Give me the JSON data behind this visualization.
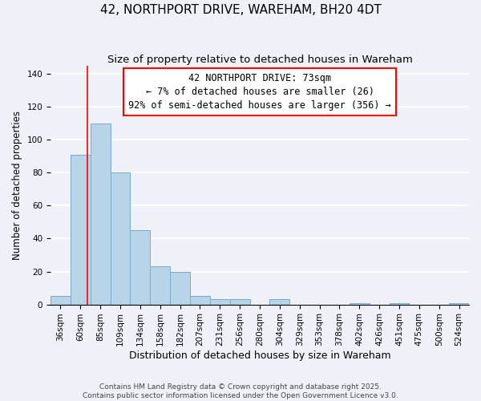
{
  "title": "42, NORTHPORT DRIVE, WAREHAM, BH20 4DT",
  "subtitle": "Size of property relative to detached houses in Wareham",
  "xlabel": "Distribution of detached houses by size in Wareham",
  "ylabel": "Number of detached properties",
  "bar_color": "#b8d4e8",
  "bar_edge_color": "#7aaac8",
  "background_color": "#eef2f8",
  "grid_color": "#ffffff",
  "categories": [
    "36sqm",
    "60sqm",
    "85sqm",
    "109sqm",
    "134sqm",
    "158sqm",
    "182sqm",
    "207sqm",
    "231sqm",
    "256sqm",
    "280sqm",
    "304sqm",
    "329sqm",
    "353sqm",
    "378sqm",
    "402sqm",
    "426sqm",
    "451sqm",
    "475sqm",
    "500sqm",
    "524sqm"
  ],
  "bar_heights": [
    5,
    91,
    110,
    80,
    45,
    23,
    20,
    5,
    3,
    3,
    0,
    3,
    0,
    0,
    0,
    1,
    0,
    1,
    0,
    0,
    1
  ],
  "ylim": [
    0,
    145
  ],
  "yticks": [
    0,
    20,
    40,
    60,
    80,
    100,
    120,
    140
  ],
  "red_line_x": 1.36,
  "annotation_title": "42 NORTHPORT DRIVE: 73sqm",
  "annotation_line1": "← 7% of detached houses are smaller (26)",
  "annotation_line2": "92% of semi-detached houses are larger (356) →",
  "footer_line1": "Contains HM Land Registry data © Crown copyright and database right 2025.",
  "footer_line2": "Contains public sector information licensed under the Open Government Licence v3.0.",
  "title_fontsize": 11,
  "subtitle_fontsize": 9.5,
  "xlabel_fontsize": 9,
  "ylabel_fontsize": 8.5,
  "tick_fontsize": 7.5,
  "annotation_fontsize": 8.5,
  "footer_fontsize": 6.5
}
